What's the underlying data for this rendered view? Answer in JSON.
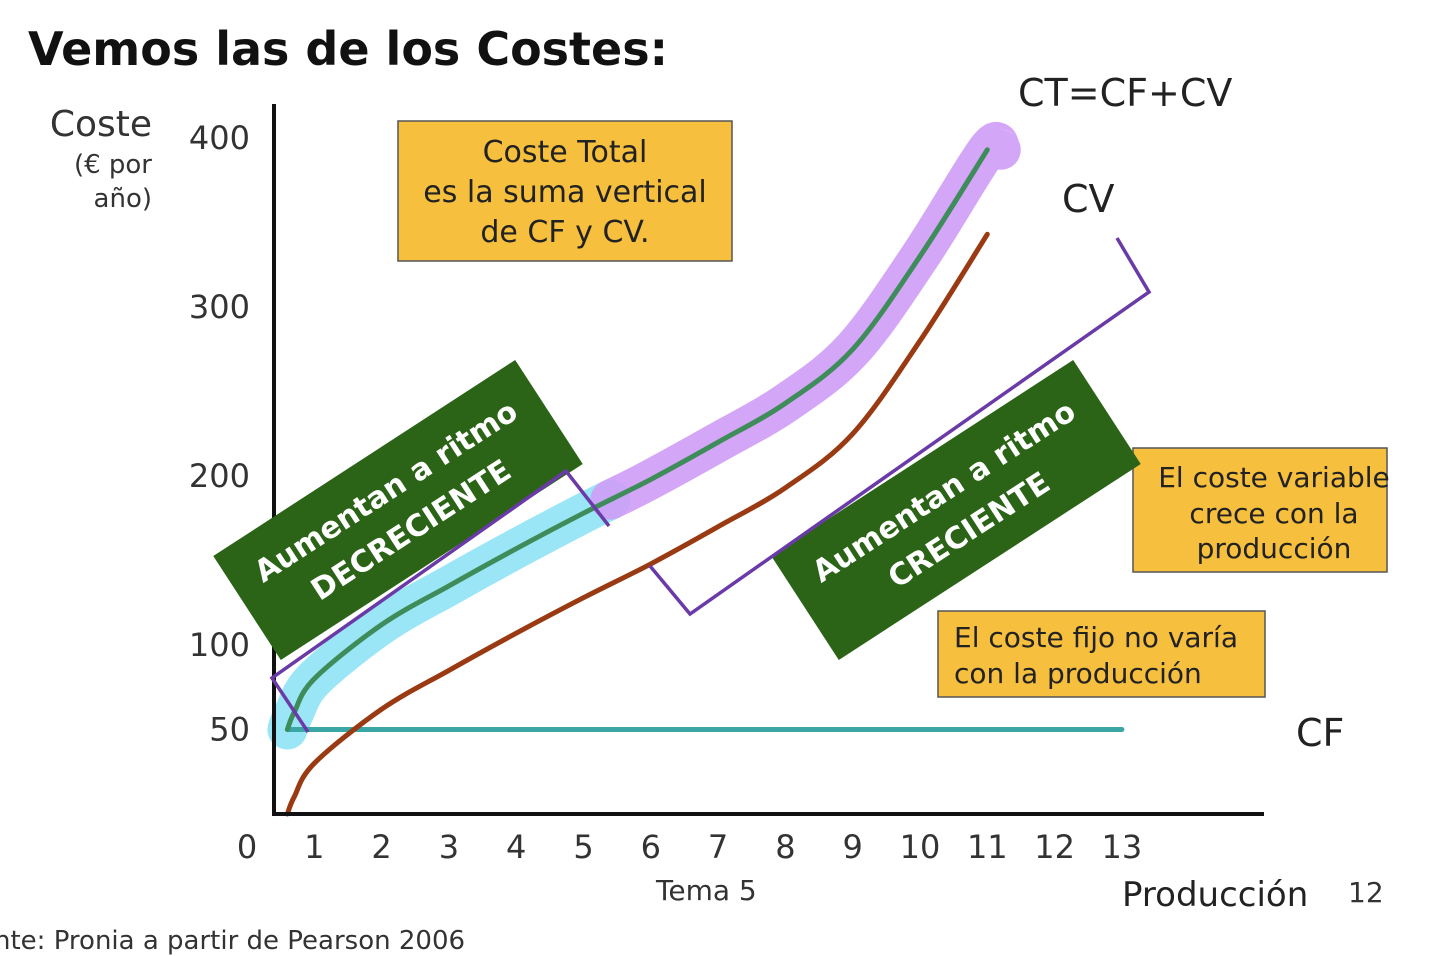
{
  "title": "Vemos las de los Costes:",
  "footer": {
    "slide": "Tema 5",
    "page": "12",
    "source": "nte: Pronia a partir de Pearson 2006"
  },
  "chart_data": {
    "type": "line",
    "title": "",
    "ylabel": "Coste",
    "yunit_line1": "(€ por",
    "yunit_line2": "año)",
    "xlabel": "Producción",
    "x_ticks": [
      "0",
      "1",
      "2",
      "3",
      "4",
      "5",
      "6",
      "7",
      "8",
      "9",
      "10",
      "11",
      "12",
      "13"
    ],
    "y_ticks": [
      "50",
      "100",
      "200",
      "300",
      "400"
    ],
    "xlim": [
      0,
      13.3
    ],
    "ylim": [
      0,
      400
    ],
    "series": [
      {
        "name": "CF",
        "color": "#3aa6a6",
        "x": [
          0.6,
          13
        ],
        "y": [
          50,
          50
        ]
      },
      {
        "name": "CV",
        "color": "#9a3a12",
        "x": [
          0.6,
          0.7,
          1,
          2,
          3,
          4,
          5,
          6,
          7,
          8,
          9,
          10,
          11
        ],
        "y": [
          0,
          10,
          30,
          62,
          85,
          107,
          128,
          148,
          170,
          193,
          225,
          280,
          343
        ]
      },
      {
        "name": "CT=CF+CV",
        "color": "#3d8c5a",
        "x": [
          0.6,
          0.7,
          1,
          2,
          3,
          4,
          5,
          6,
          7,
          8,
          9,
          10,
          11
        ],
        "y": [
          50,
          60,
          80,
          112,
          135,
          157,
          178,
          198,
          220,
          243,
          275,
          330,
          393
        ]
      }
    ],
    "highlights": [
      {
        "series": "CT=CF+CV",
        "x_range": [
          0.6,
          5.4
        ],
        "color": "#8fe3f5"
      },
      {
        "series": "CT=CF+CV",
        "x_range": [
          5.4,
          11.2
        ],
        "color": "#cf9cf7"
      }
    ],
    "annotations": {
      "total_box": [
        "Coste Total",
        "es la suma vertical",
        "de CF y CV."
      ],
      "variable_box": [
        "El coste variable",
        "crece con la",
        "producción"
      ],
      "fixed_box": [
        "El coste fijo no varía",
        "con la producción"
      ],
      "decreasing_banner": [
        "Aumentan a ritmo",
        "DECRECIENTE"
      ],
      "increasing_banner": [
        "Aumentan a ritmo",
        "CRECIENTE"
      ]
    },
    "annotation_colors": {
      "box_fill": "#f6bf3e",
      "banner_fill": "#2b6417",
      "bracket": "#6a3aa8"
    }
  }
}
